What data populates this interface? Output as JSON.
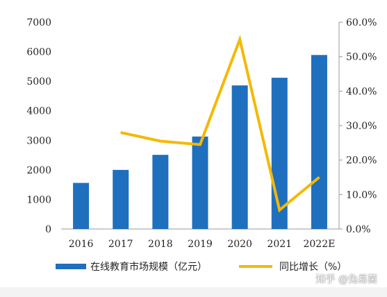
{
  "chart_data": {
    "type": "bar",
    "categories": [
      "2016",
      "2017",
      "2018",
      "2019",
      "2020",
      "2021",
      "2022E"
    ],
    "series": [
      {
        "name": "在线教育市场规模（亿元）",
        "type": "bar",
        "axis": "left",
        "color": "#1f6fbf",
        "values": [
          1560,
          2000,
          2510,
          3130,
          4860,
          5120,
          5890
        ]
      },
      {
        "name": "同比增长（%）",
        "type": "line",
        "axis": "right",
        "color": "#f5b800",
        "values": [
          null,
          28.0,
          25.5,
          24.5,
          55.0,
          5.5,
          15.0
        ]
      }
    ],
    "y_left": {
      "ylim": [
        0,
        7000
      ],
      "ticks": [
        "0",
        "1000",
        "2000",
        "3000",
        "4000",
        "5000",
        "6000",
        "7000"
      ]
    },
    "y_right": {
      "ylim": [
        0,
        60
      ],
      "ticks": [
        "0.0%",
        "10.0%",
        "20.0%",
        "30.0%",
        "40.0%",
        "50.0%",
        "60.0%"
      ]
    },
    "legend_position": "bottom",
    "grid": false
  },
  "watermark": "知乎 @兔易菌"
}
